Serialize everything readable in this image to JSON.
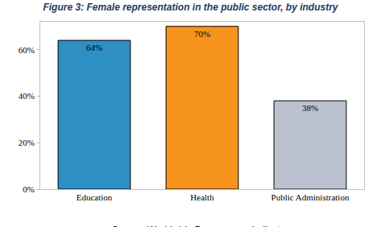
{
  "chart_data": {
    "type": "bar",
    "title": "Figure 3: Female representation in the public sector, by industry",
    "categories": [
      "Education",
      "Health",
      "Public Administration"
    ],
    "values": [
      64,
      70,
      38
    ],
    "value_labels": [
      "64%",
      "70%",
      "38%"
    ],
    "colors": [
      "#2e8fc4",
      "#f7941d",
      "#bcc2cf"
    ],
    "ylim": [
      0,
      72
    ],
    "yticks": [
      {
        "value": 0,
        "label": "0%"
      },
      {
        "value": 20,
        "label": "20%"
      },
      {
        "value": 40,
        "label": "40%"
      },
      {
        "value": 60,
        "label": "60%"
      }
    ],
    "grid": false,
    "data_labels": true,
    "annotations": [
      "Source: Worldwide Bureaucracy Indicators"
    ]
  }
}
